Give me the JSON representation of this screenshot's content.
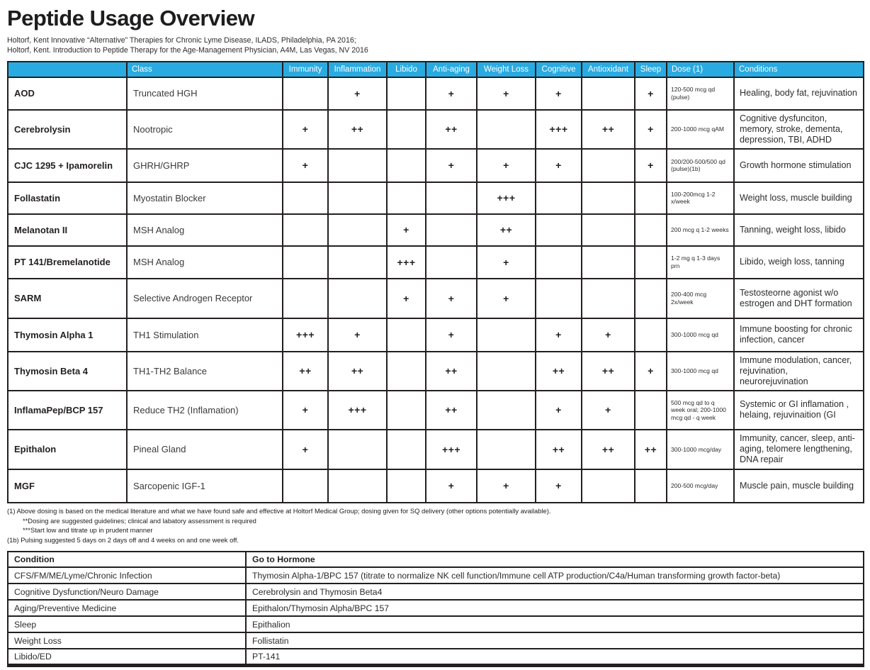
{
  "page": {
    "title": "Peptide Usage Overview",
    "source_lines": [
      "Holtorf, Kent Innovative “Alternative” Therapies for Chronic Lyme Disease, ILADS, Philadelphia, PA 2016;",
      "Holtorf, Kent. Introduction to Peptide Therapy for the Age-Management Physician, A4M, Las Vegas, NV 2016"
    ]
  },
  "colors": {
    "header_blue": "#29abe2",
    "border_black": "#231f20",
    "text_dark": "#2c2c2e"
  },
  "main_table": {
    "columns": [
      "",
      "Class",
      "Immunity",
      "Inflammation",
      "Libido",
      "Anti-aging",
      "Weight Loss",
      "Cognitive",
      "Antioxidant",
      "Sleep",
      "Dose (1)",
      "Conditions"
    ],
    "rows": [
      {
        "name": "AOD",
        "class": "Truncated HGH",
        "ratings": [
          "",
          "+",
          "",
          "+",
          "+",
          "+",
          "",
          "+"
        ],
        "dose": "120-500 mcg qd (pulse)",
        "conditions": "Healing, body fat, rejuvination"
      },
      {
        "name": "Cerebrolysin",
        "class": "Nootropic",
        "ratings": [
          "+",
          "++",
          "",
          "++",
          "",
          "+++",
          "++",
          "+"
        ],
        "dose": "200-1000 mcg qAM",
        "conditions": "Cognitive dysfunciton, memory, stroke, dementa, depression, TBI, ADHD"
      },
      {
        "name": "CJC 1295 + Ipamorelin",
        "class": "GHRH/GHRP",
        "ratings": [
          "+",
          "",
          "",
          "+",
          "+",
          "+",
          "",
          "+"
        ],
        "dose": "200/200-500/500 qd (pulse)(1b)",
        "conditions": "Growth hormone stimulation"
      },
      {
        "name": "Follastatin",
        "class": "Myostatin Blocker",
        "ratings": [
          "",
          "",
          "",
          "",
          "+++",
          "",
          "",
          ""
        ],
        "dose": "100-200mcg 1-2 x/week",
        "conditions": "Weight loss, muscle building"
      },
      {
        "name": "Melanotan II",
        "class": "MSH Analog",
        "ratings": [
          "",
          "",
          "+",
          "",
          "++",
          "",
          "",
          ""
        ],
        "dose": "200 mcg q 1-2 weeks",
        "conditions": "Tanning, weight loss, libido"
      },
      {
        "name": "PT 141/Bremelanotide",
        "class": "MSH Analog",
        "ratings": [
          "",
          "",
          "+++",
          "",
          "+",
          "",
          "",
          ""
        ],
        "dose": "1-2 mg q 1-3 days prn",
        "conditions": "Libido, weigh loss, tanning"
      },
      {
        "name": "SARM",
        "class": "Selective Androgen Receptor",
        "ratings": [
          "",
          "",
          "+",
          "+",
          "+",
          "",
          "",
          ""
        ],
        "dose": "200-400 mcg 2x/week",
        "conditions": "Testosteorne agonist w/o estrogen and DHT formation"
      },
      {
        "name": "Thymosin Alpha 1",
        "class": "TH1 Stimulation",
        "ratings": [
          "+++",
          "+",
          "",
          "+",
          "",
          "+",
          "+",
          ""
        ],
        "dose": "300-1000 mcg qd",
        "conditions": "Immune boosting for chronic infection, cancer"
      },
      {
        "name": "Thymosin Beta 4",
        "class": "TH1-TH2 Balance",
        "ratings": [
          "++",
          "++",
          "",
          "++",
          "",
          "++",
          "++",
          "+"
        ],
        "dose": "300-1000 mcg qd",
        "conditions": "Immune modulation, cancer, rejuvination, neurorejuvination"
      },
      {
        "name": "InflamaPep/BCP 157",
        "class": "Reduce TH2 (Inflamation)",
        "ratings": [
          "+",
          "+++",
          "",
          "++",
          "",
          "+",
          "+",
          ""
        ],
        "dose": "500 mcg qd to q week oral; 200-1000 mcg qd - q week",
        "conditions": "Systemic or GI inflamation , helaing, rejuvinaition (GI"
      },
      {
        "name": "Epithalon",
        "class": "Pineal Gland",
        "ratings": [
          "+",
          "",
          "",
          "+++",
          "",
          "++",
          "++",
          "++"
        ],
        "dose": "300-1000 mcg/day",
        "conditions": "Immunity, cancer, sleep, anti-aging, telomere lengthening, DNA repair"
      },
      {
        "name": "MGF",
        "class": "Sarcopenic IGF-1",
        "ratings": [
          "",
          "",
          "",
          "+",
          "+",
          "+",
          "",
          ""
        ],
        "dose": "200-500 mcg/day",
        "conditions": "Muscle pain, muscle building"
      }
    ]
  },
  "footnotes": [
    "(1)  Above dosing is based on the medical literature and what we have found safe and effective at Holtorf Medical Group; dosing given for SQ delivery (other options potentially available).",
    "**Dosing are suggested guidelines; clinical and labatory assessment is required",
    "***Start low and titrate up in prudent manner",
    "(1b) Pulsing suggested 5 days on 2 days off and 4 weeks on and one week off."
  ],
  "condition_table": {
    "columns": [
      "Condition",
      "Go to Hormone"
    ],
    "rows": [
      {
        "condition": "CFS/FM/ME/Lyme/Chronic Infection",
        "hormone": "Thymosin Alpha-1/BPC 157 (titrate to normalize NK cell function/Immune cell ATP production/C4a/Human transforming growth factor-beta)"
      },
      {
        "condition": "Cognitive Dysfunction/Neuro Damage",
        "hormone": "Cerebrolysin and Thymosin Beta4"
      },
      {
        "condition": "Aging/Preventive Medicine",
        "hormone": "Epithalon/Thymosin Alpha/BPC 157"
      },
      {
        "condition": "Sleep",
        "hormone": "Epithalion"
      },
      {
        "condition": "Weight Loss",
        "hormone": "Follistatin"
      },
      {
        "condition": "Libido/ED",
        "hormone": "PT-141"
      }
    ]
  }
}
